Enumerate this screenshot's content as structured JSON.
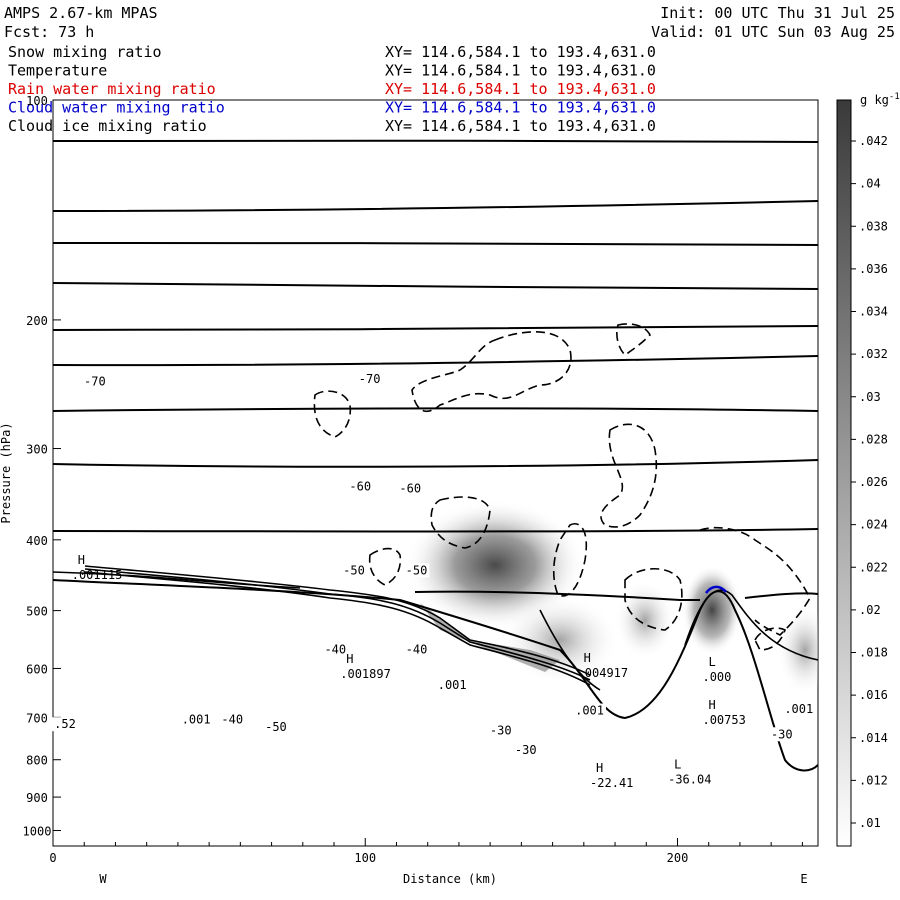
{
  "header": {
    "model": "AMPS 2.67-km MPAS",
    "fcst": "Fcst:    73 h",
    "init": "Init: 00 UTC Thu 31 Jul 25",
    "valid": "Valid: 01 UTC Sun 03 Aug 25"
  },
  "fields": [
    {
      "name": "Snow mixing ratio",
      "xy": "XY= 114.6,584.1 to 193.4,631.0",
      "color": "#000000"
    },
    {
      "name": "Temperature",
      "xy": "XY= 114.6,584.1 to 193.4,631.0",
      "color": "#000000"
    },
    {
      "name": "Rain water mixing ratio",
      "xy": "XY= 114.6,584.1 to 193.4,631.0",
      "color": "#dd0000"
    },
    {
      "name": "Cloud water mixing ratio",
      "xy": "XY= 114.6,584.1 to 193.4,631.0",
      "color": "#0000cc"
    },
    {
      "name": "Cloud ice mixing ratio",
      "xy": "XY= 114.6,584.1 to 193.4,631.0",
      "color": "#000000"
    }
  ],
  "chart_data": {
    "type": "contour-cross-section",
    "xlabel": "Distance (km)",
    "ylabel": "Pressure (hPa)",
    "xlim": [
      0,
      245
    ],
    "ylim": [
      100,
      1050
    ],
    "y_scale": "log",
    "x_ticks": [
      "0",
      "100",
      "200"
    ],
    "y_ticks": [
      "200",
      "300",
      "400",
      "500",
      "600",
      "700",
      "800",
      "900",
      "1000"
    ],
    "west_label": "W",
    "east_label": "E",
    "colorbar": {
      "unit": "g kg",
      "unit_exp": "-1",
      "ticks": [
        ".042",
        ".04",
        ".038",
        ".036",
        ".034",
        ".032",
        ".03",
        ".028",
        ".026",
        ".024",
        ".022",
        ".02",
        ".018",
        ".016",
        ".014",
        ".012",
        ".01"
      ]
    },
    "temperature_labels": [
      {
        "text": "-70",
        "x": 7,
        "p": 242
      },
      {
        "text": "-70",
        "x": 95,
        "p": 240
      },
      {
        "text": "-60",
        "x": 92,
        "p": 337
      },
      {
        "text": "-60",
        "x": 108,
        "p": 339
      },
      {
        "text": "-50",
        "x": 90,
        "p": 439
      },
      {
        "text": "-50",
        "x": 110,
        "p": 439
      },
      {
        "text": "-40",
        "x": 84,
        "p": 563
      },
      {
        "text": "-40",
        "x": 110,
        "p": 563
      },
      {
        "text": "-30",
        "x": 137,
        "p": 727
      },
      {
        "text": "-30",
        "x": 145,
        "p": 774
      },
      {
        "text": "-30",
        "x": 227,
        "p": 736
      },
      {
        "text": "-50",
        "x": 65,
        "p": 719
      },
      {
        "text": "-40",
        "x": 51,
        "p": 702
      }
    ],
    "extrema": [
      {
        "kind": "H",
        "value": ".001115",
        "x": 6,
        "p": 432
      },
      {
        "kind": "H",
        "value": ".001897",
        "x": 92,
        "p": 590
      },
      {
        "kind": "H",
        "value": ".004917",
        "x": 168,
        "p": 588
      },
      {
        "kind": "L",
        "value": ".000",
        "x": 208,
        "p": 595
      },
      {
        "kind": "H",
        "value": ".00753",
        "x": 208,
        "p": 682
      },
      {
        "kind": "H",
        "value": "-22.41",
        "x": 172,
        "p": 831
      },
      {
        "kind": "L",
        "value": "-36.04",
        "x": 197,
        "p": 822
      }
    ],
    "contour_values": [
      {
        "text": ".001",
        "x": 124,
        "p": 630
      },
      {
        "text": ".001",
        "x": 168,
        "p": 683
      },
      {
        "text": ".001",
        "x": 235,
        "p": 680
      },
      {
        "text": ".52",
        "x": 0,
        "p": 713
      },
      {
        "text": ".001",
        "x": 42,
        "p": 703
      }
    ]
  }
}
